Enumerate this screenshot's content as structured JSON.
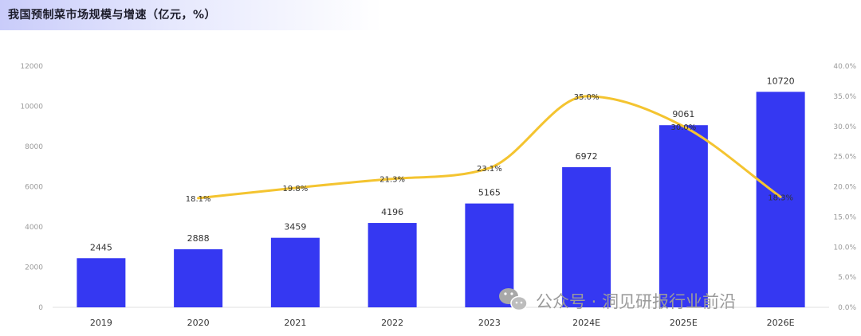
{
  "header": {
    "title": "我国预制菜市场规模与增速（亿元，%）"
  },
  "watermark": {
    "text": "公众号 · 洞见研报行业前沿",
    "icon": "wechat-icon"
  },
  "colors": {
    "bar": "#3538f2",
    "line": "#f4c430",
    "band": "#c9ccfa"
  },
  "chart_data": {
    "type": "bar",
    "title": "我国预制菜市场规模与增速（亿元，%）",
    "categories": [
      "2019",
      "2020",
      "2021",
      "2022",
      "2023",
      "2024E",
      "2025E",
      "2026E"
    ],
    "series": [
      {
        "type": "bar",
        "axis": "left",
        "values": [
          2445,
          2888,
          3459,
          4196,
          5165,
          6972,
          9061,
          10720
        ],
        "labels": [
          "2445",
          "2888",
          "3459",
          "4196",
          "5165",
          "6972",
          "9061",
          "10720"
        ]
      },
      {
        "type": "line",
        "axis": "right",
        "smooth": true,
        "values": [
          null,
          18.1,
          19.8,
          21.3,
          23.1,
          35.0,
          30.0,
          18.3
        ],
        "labels": [
          "",
          "18.1%",
          "19.8%",
          "21.3%",
          "23.1%",
          "35.0%",
          "30.0%",
          "18.3%"
        ]
      }
    ],
    "ylim_left": [
      0,
      12000
    ],
    "yticks_left": [
      "0",
      "2000",
      "4000",
      "6000",
      "8000",
      "10000",
      "12000"
    ],
    "ylim_right": [
      0,
      40
    ],
    "yticks_right": [
      "0.0%",
      "5.0%",
      "10.0%",
      "15.0%",
      "20.0%",
      "25.0%",
      "30.0%",
      "35.0%",
      "40.0%"
    ],
    "grid": false,
    "legend": "none"
  }
}
